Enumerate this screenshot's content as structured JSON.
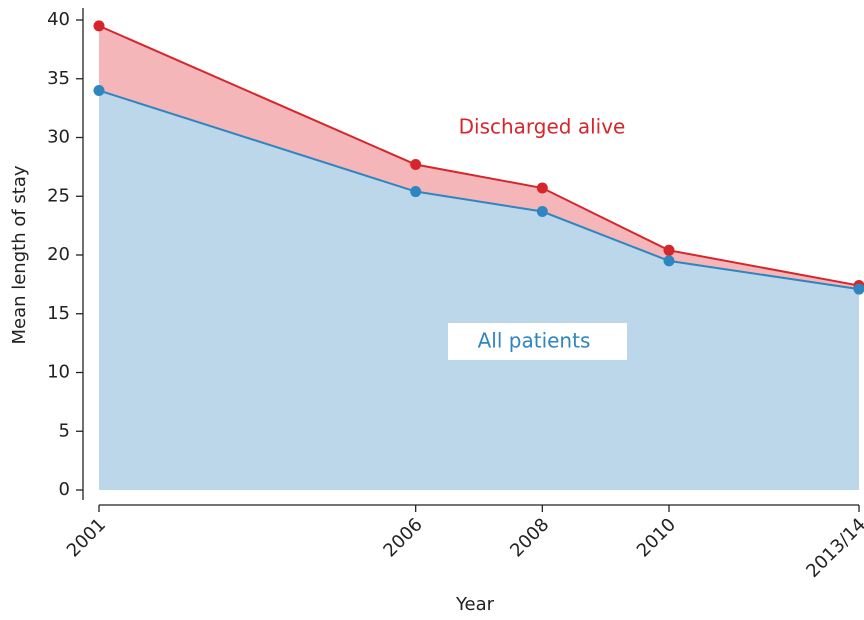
{
  "chart_data": {
    "type": "area",
    "x_label": "Year",
    "y_label": "Mean length of stay",
    "x": [
      2001,
      2006,
      2008,
      2010,
      2013
    ],
    "xlim": [
      2001,
      2013
    ],
    "xticks": [
      2001,
      2006,
      2008,
      2010,
      {
        "value": 2013,
        "label": "2013/14"
      }
    ],
    "ylim": [
      0,
      40
    ],
    "yticks": [
      0,
      5,
      10,
      15,
      20,
      25,
      30,
      35,
      40
    ],
    "series": [
      {
        "name": "Discharged alive",
        "color": "#d7262b",
        "fill_color": "#f4b6b8",
        "values": [
          39.5,
          27.7,
          25.7,
          20.4,
          17.4
        ]
      },
      {
        "name": "All patients",
        "color": "#2e86c1",
        "fill_color": "#bcd6ea",
        "values": [
          34.0,
          25.4,
          23.7,
          19.5,
          17.1
        ]
      }
    ]
  }
}
